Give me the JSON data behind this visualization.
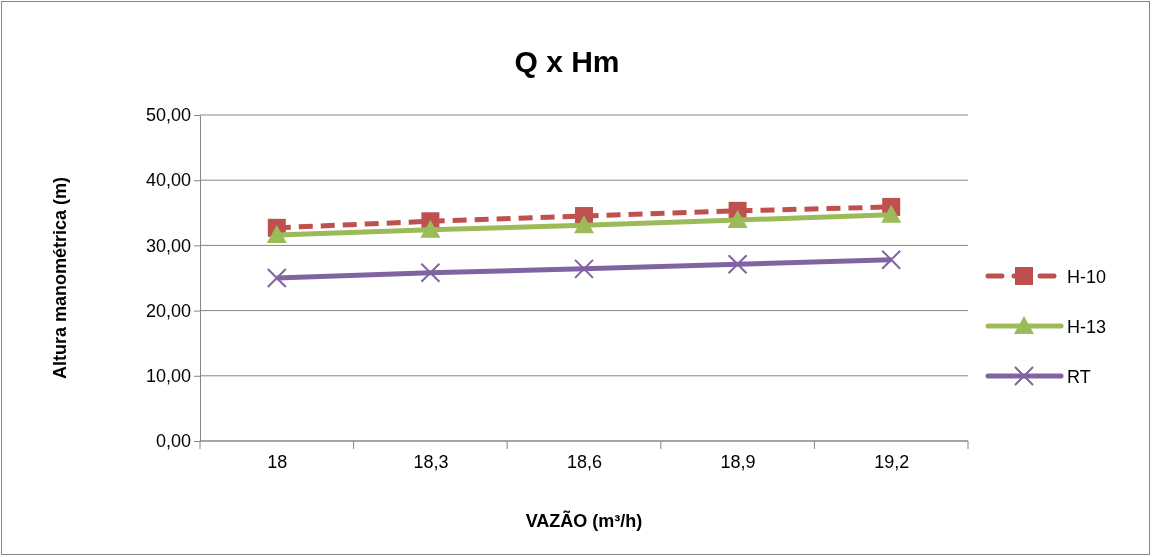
{
  "chart_data": {
    "type": "line",
    "title": "Q x Hm",
    "xlabel": "VAZÃO (m³/h)",
    "ylabel": "Altura manométrica (m)",
    "categories": [
      "18",
      "18,3",
      "18,6",
      "18,9",
      "19,2"
    ],
    "series": [
      {
        "name": "H-10",
        "color": "#c0504d",
        "values": [
          32.7,
          33.7,
          34.5,
          35.3,
          35.9
        ],
        "marker": "square",
        "line_style": "dashed"
      },
      {
        "name": "H-13",
        "color": "#9bbb59",
        "values": [
          31.6,
          32.4,
          33.1,
          33.9,
          34.7
        ],
        "marker": "triangle",
        "line_style": "solid"
      },
      {
        "name": "RT",
        "color": "#8064a2",
        "values": [
          25.0,
          25.8,
          26.4,
          27.1,
          27.8
        ],
        "marker": "cross",
        "line_style": "solid"
      }
    ],
    "ylim": [
      0,
      50
    ],
    "yticks": [
      {
        "value": 0,
        "label": "0,00"
      },
      {
        "value": 10,
        "label": "10,00"
      },
      {
        "value": 20,
        "label": "20,00"
      },
      {
        "value": 30,
        "label": "30,00"
      },
      {
        "value": 40,
        "label": "40,00"
      },
      {
        "value": 50,
        "label": "50,00"
      }
    ],
    "grid": "y",
    "legend": "right"
  }
}
